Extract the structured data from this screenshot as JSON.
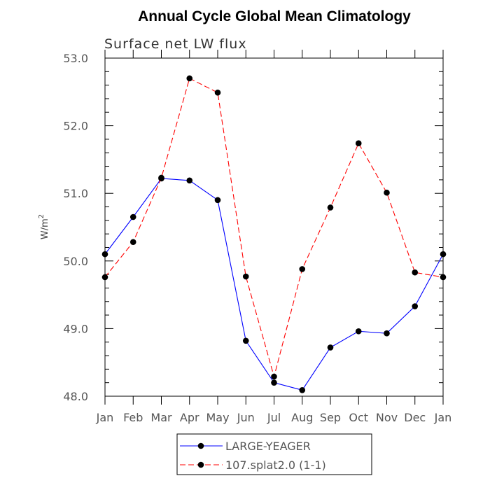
{
  "chart_data": {
    "type": "line",
    "title": "Annual Cycle Global Mean Climatology",
    "subtitle": "Surface net LW flux",
    "ylabel": "W/m",
    "ylabel_sup": "2",
    "xlabel": "",
    "categories": [
      "Jan",
      "Feb",
      "Mar",
      "Apr",
      "May",
      "Jun",
      "Jul",
      "Aug",
      "Sep",
      "Oct",
      "Nov",
      "Dec",
      "Jan"
    ],
    "ylim": [
      48.0,
      53.0
    ],
    "yticks": [
      "48.0",
      "49.0",
      "50.0",
      "51.0",
      "52.0",
      "53.0"
    ],
    "grid": false,
    "legend_position": "bottom",
    "series": [
      {
        "name": "LARGE-YEAGER",
        "color": "#0000ff",
        "dash": "solid",
        "marker": "filled-circle",
        "values": [
          50.1,
          50.65,
          51.22,
          51.19,
          50.9,
          48.82,
          48.2,
          48.09,
          48.72,
          48.96,
          48.93,
          49.33,
          50.1
        ]
      },
      {
        "name": "107.splat2.0 (1-1)",
        "color": "#ff0000",
        "dash": "dashed",
        "marker": "filled-circle",
        "values": [
          49.76,
          50.28,
          51.23,
          52.7,
          52.49,
          49.77,
          48.29,
          49.88,
          50.79,
          51.74,
          51.01,
          49.83,
          49.76
        ]
      }
    ]
  }
}
